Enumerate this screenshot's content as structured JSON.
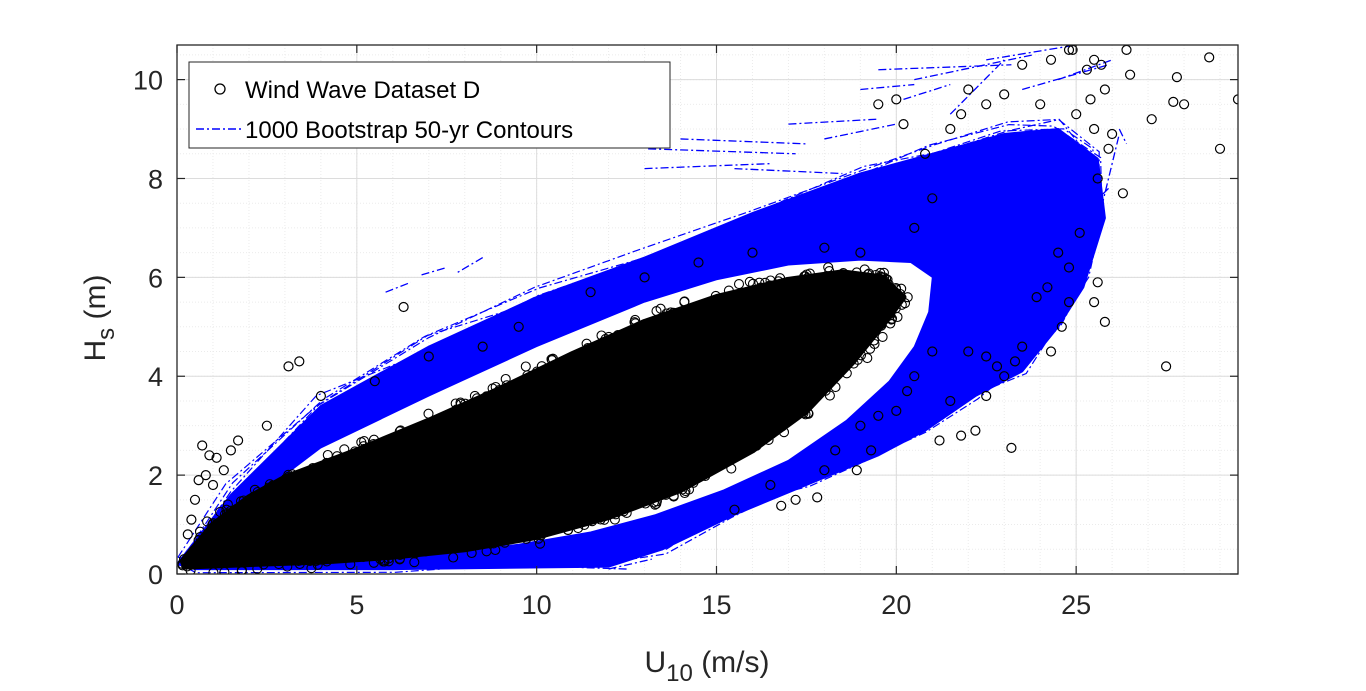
{
  "chart_data": {
    "type": "scatter",
    "title": "",
    "xlabel": {
      "main": "U",
      "sub": "10",
      "unit": " (m/s)"
    },
    "ylabel": {
      "main": "H",
      "sub": "s",
      "unit": " (m)"
    },
    "xlim": [
      0,
      29.5
    ],
    "ylim": [
      0,
      10.7
    ],
    "x_ticks": [
      0,
      5,
      10,
      15,
      20,
      25
    ],
    "y_ticks": [
      0,
      2,
      4,
      6,
      8,
      10
    ],
    "x_minor_step": 1,
    "y_minor_step": 0.5,
    "grid": true,
    "minor_grid": true,
    "legend_position": "top-left",
    "series": [
      {
        "name": "Wind Wave Dataset D",
        "kind": "scatter",
        "marker": "open-circle",
        "color": "#000000",
        "core_envelope": {
          "upper": [
            [
              0.2,
              0.3
            ],
            [
              1,
              1.0
            ],
            [
              2,
              1.55
            ],
            [
              3,
              1.95
            ],
            [
              5,
              2.5
            ],
            [
              7,
              3.1
            ],
            [
              9,
              3.75
            ],
            [
              11,
              4.45
            ],
            [
              13,
              5.1
            ],
            [
              15,
              5.6
            ],
            [
              17,
              5.95
            ],
            [
              18.5,
              6.1
            ],
            [
              19.6,
              6.0
            ],
            [
              20.2,
              5.6
            ]
          ],
          "lower": [
            [
              0.2,
              0.15
            ],
            [
              2,
              0.2
            ],
            [
              4,
              0.25
            ],
            [
              6,
              0.35
            ],
            [
              8,
              0.5
            ],
            [
              10,
              0.75
            ],
            [
              12,
              1.15
            ],
            [
              14,
              1.7
            ],
            [
              16,
              2.5
            ],
            [
              17.5,
              3.3
            ],
            [
              18.8,
              4.3
            ],
            [
              19.8,
              5.2
            ],
            [
              20.2,
              5.6
            ]
          ]
        },
        "outliers": [
          [
            0.3,
            0.8
          ],
          [
            0.4,
            1.1
          ],
          [
            0.5,
            1.5
          ],
          [
            0.6,
            1.9
          ],
          [
            0.7,
            2.6
          ],
          [
            0.9,
            2.4
          ],
          [
            1.1,
            2.35
          ],
          [
            1.3,
            2.1
          ],
          [
            1.5,
            2.5
          ],
          [
            1.7,
            2.7
          ],
          [
            0.8,
            2.0
          ],
          [
            1.0,
            1.8
          ],
          [
            2.5,
            3.0
          ],
          [
            3.1,
            4.2
          ],
          [
            3.4,
            4.3
          ],
          [
            6.3,
            5.4
          ],
          [
            4.0,
            3.6
          ],
          [
            5.5,
            3.9
          ],
          [
            7.0,
            4.4
          ],
          [
            8.5,
            4.6
          ],
          [
            9.5,
            5.0
          ],
          [
            11.5,
            5.7
          ],
          [
            13.0,
            6.0
          ],
          [
            14.5,
            6.3
          ],
          [
            16.0,
            6.5
          ],
          [
            18.0,
            6.6
          ],
          [
            19.0,
            6.5
          ],
          [
            20.5,
            7.0
          ],
          [
            21.0,
            7.6
          ],
          [
            20.8,
            8.5
          ],
          [
            21.5,
            9.0
          ],
          [
            20.2,
            9.1
          ],
          [
            20.0,
            9.6
          ],
          [
            19.5,
            9.5
          ],
          [
            21.8,
            9.3
          ],
          [
            22.5,
            9.5
          ],
          [
            23.0,
            9.7
          ],
          [
            22.0,
            9.8
          ],
          [
            23.5,
            10.3
          ],
          [
            24.3,
            10.4
          ],
          [
            24.8,
            10.6
          ],
          [
            24.9,
            10.6
          ],
          [
            25.3,
            10.2
          ],
          [
            25.5,
            10.4
          ],
          [
            25.7,
            10.3
          ],
          [
            26.4,
            10.6
          ],
          [
            26.5,
            10.1
          ],
          [
            25.8,
            9.8
          ],
          [
            25.4,
            9.6
          ],
          [
            24.0,
            9.5
          ],
          [
            25.0,
            9.3
          ],
          [
            25.5,
            9.0
          ],
          [
            26.0,
            8.9
          ],
          [
            27.1,
            9.2
          ],
          [
            27.7,
            9.55
          ],
          [
            27.8,
            10.05
          ],
          [
            28.0,
            9.5
          ],
          [
            28.7,
            10.45
          ],
          [
            29.0,
            8.6
          ],
          [
            29.5,
            9.6
          ],
          [
            26.3,
            7.7
          ],
          [
            25.6,
            8.0
          ],
          [
            25.9,
            8.6
          ],
          [
            25.1,
            6.9
          ],
          [
            25.6,
            5.9
          ],
          [
            25.5,
            5.5
          ],
          [
            25.8,
            5.1
          ],
          [
            24.6,
            5.0
          ],
          [
            24.8,
            5.5
          ],
          [
            23.9,
            5.6
          ],
          [
            24.2,
            5.8
          ],
          [
            24.8,
            6.2
          ],
          [
            23.5,
            4.6
          ],
          [
            23.3,
            4.3
          ],
          [
            23.0,
            4.0
          ],
          [
            24.3,
            4.5
          ],
          [
            22.8,
            4.2
          ],
          [
            22.5,
            4.4
          ],
          [
            22.0,
            4.5
          ],
          [
            21.0,
            4.5
          ],
          [
            20.5,
            4.0
          ],
          [
            21.5,
            3.5
          ],
          [
            22.2,
            2.9
          ],
          [
            23.2,
            2.55
          ],
          [
            21.8,
            2.8
          ],
          [
            20.0,
            3.3
          ],
          [
            19.5,
            3.2
          ],
          [
            19.0,
            3.0
          ],
          [
            19.3,
            2.5
          ],
          [
            18.9,
            2.1
          ],
          [
            18.3,
            2.5
          ],
          [
            18.0,
            2.1
          ],
          [
            17.8,
            1.55
          ],
          [
            16.5,
            1.8
          ],
          [
            15.5,
            1.3
          ],
          [
            17.2,
            1.5
          ],
          [
            16.8,
            1.38
          ],
          [
            27.5,
            4.2
          ],
          [
            21.2,
            2.7
          ],
          [
            20.3,
            3.7
          ],
          [
            22.5,
            3.6
          ],
          [
            24.5,
            6.5
          ]
        ]
      },
      {
        "name": "1000 Bootstrap 50-yr Contours",
        "kind": "contour-band",
        "linestyle": "dash-dot",
        "color": "#0000ff",
        "band_outer": [
          [
            0,
            0.2
          ],
          [
            1.5,
            1.6
          ],
          [
            4,
            3.4
          ],
          [
            7,
            4.6
          ],
          [
            10,
            5.6
          ],
          [
            13,
            6.4
          ],
          [
            16,
            7.3
          ],
          [
            19,
            8.1
          ],
          [
            21,
            8.5
          ],
          [
            23,
            8.9
          ],
          [
            24.5,
            9.0
          ],
          [
            25.6,
            8.4
          ],
          [
            25.8,
            7.2
          ],
          [
            25.2,
            5.8
          ],
          [
            24.5,
            5.0
          ],
          [
            23.5,
            4.1
          ],
          [
            22.2,
            3.6
          ],
          [
            20.8,
            2.9
          ],
          [
            19.5,
            2.4
          ],
          [
            17.5,
            1.8
          ],
          [
            15.5,
            1.2
          ],
          [
            13.5,
            0.5
          ],
          [
            12,
            0.15
          ],
          [
            6,
            0.1
          ],
          [
            0.5,
            0.1
          ]
        ],
        "band_inner": [
          [
            0.6,
            0.25
          ],
          [
            2,
            1.45
          ],
          [
            4,
            2.55
          ],
          [
            7,
            3.6
          ],
          [
            10,
            4.6
          ],
          [
            13,
            5.5
          ],
          [
            15,
            5.95
          ],
          [
            17,
            6.25
          ],
          [
            19,
            6.35
          ],
          [
            20.4,
            6.3
          ],
          [
            21,
            6.0
          ],
          [
            20.9,
            5.3
          ],
          [
            20.5,
            4.6
          ],
          [
            19.8,
            3.9
          ],
          [
            18.6,
            3.1
          ],
          [
            17,
            2.3
          ],
          [
            15.2,
            1.7
          ],
          [
            13.3,
            1.2
          ],
          [
            11.5,
            0.85
          ],
          [
            9.5,
            0.6
          ],
          [
            7,
            0.4
          ],
          [
            4,
            0.28
          ],
          [
            1.5,
            0.22
          ]
        ]
      }
    ],
    "bootstrap_spikes": [
      [
        [
          13.0,
          8.2
        ],
        [
          16.5,
          8.3
        ]
      ],
      [
        [
          13.1,
          8.6
        ],
        [
          17.2,
          8.5
        ]
      ],
      [
        [
          14.0,
          8.8
        ],
        [
          17.5,
          8.7
        ]
      ],
      [
        [
          15.5,
          8.2
        ],
        [
          18.5,
          8.1
        ]
      ],
      [
        [
          17.0,
          9.1
        ],
        [
          19.5,
          9.2
        ]
      ],
      [
        [
          19.5,
          10.2
        ],
        [
          23.2,
          10.3
        ]
      ],
      [
        [
          20.5,
          10.0
        ],
        [
          23.8,
          10.5
        ]
      ],
      [
        [
          22.5,
          10.4
        ],
        [
          25.0,
          10.7
        ]
      ],
      [
        [
          21.5,
          9.3
        ],
        [
          23.0,
          10.4
        ]
      ],
      [
        [
          20.2,
          9.6
        ],
        [
          21.5,
          9.9
        ]
      ],
      [
        [
          24.5,
          10.0
        ],
        [
          26.0,
          10.4
        ]
      ],
      [
        [
          23.5,
          9.8
        ],
        [
          25.9,
          10.3
        ]
      ],
      [
        [
          19.0,
          9.8
        ],
        [
          20.5,
          9.9
        ]
      ],
      [
        [
          8.5,
          6.4
        ],
        [
          7.8,
          6.1
        ]
      ],
      [
        [
          6.8,
          6.05
        ],
        [
          7.5,
          6.2
        ]
      ],
      [
        [
          5.8,
          5.7
        ],
        [
          6.5,
          5.9
        ]
      ],
      [
        [
          25.5,
          6.8
        ],
        [
          26.2,
          8.9
        ]
      ],
      [
        [
          24.8,
          7.0
        ],
        [
          25.9,
          7.8
        ]
      ],
      [
        [
          24.0,
          6.2
        ],
        [
          24.6,
          5.5
        ]
      ],
      [
        [
          22.8,
          5.2
        ],
        [
          22.0,
          4.5
        ]
      ],
      [
        [
          12.0,
          0.1
        ],
        [
          13.2,
          0.3
        ]
      ],
      [
        [
          10.5,
          0.15
        ],
        [
          12.5,
          0.1
        ]
      ],
      [
        [
          26.2,
          9.0
        ],
        [
          26.4,
          8.7
        ]
      ],
      [
        [
          18.0,
          8.8
        ],
        [
          20.0,
          9.1
        ]
      ]
    ]
  }
}
